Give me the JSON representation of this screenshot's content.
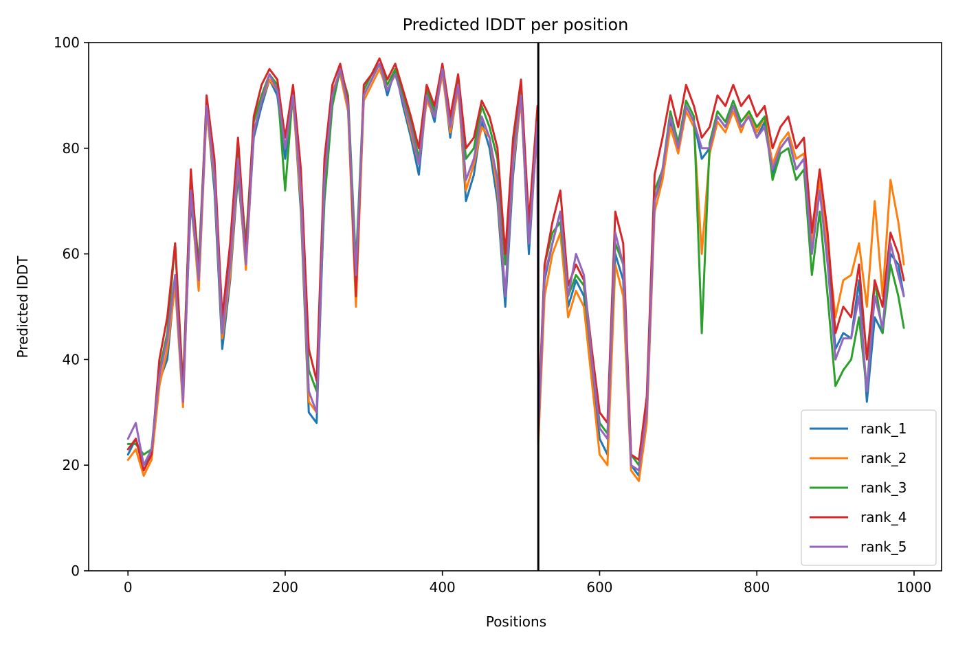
{
  "chart_data": {
    "type": "line",
    "title": "Predicted lDDT per position",
    "xlabel": "Positions",
    "ylabel": "Predicted lDDT",
    "xlim": [
      -50,
      1035
    ],
    "ylim": [
      0,
      100
    ],
    "xticks": [
      0,
      200,
      400,
      600,
      800,
      1000
    ],
    "yticks": [
      0,
      20,
      40,
      60,
      80,
      100
    ],
    "grid": false,
    "legend_position": "lower-right",
    "vline_x": 522,
    "x": [
      0,
      10,
      20,
      30,
      40,
      50,
      60,
      70,
      80,
      90,
      100,
      110,
      120,
      130,
      140,
      150,
      160,
      170,
      180,
      190,
      200,
      210,
      220,
      230,
      240,
      250,
      260,
      270,
      280,
      290,
      300,
      310,
      320,
      330,
      340,
      350,
      360,
      370,
      380,
      390,
      400,
      410,
      420,
      430,
      440,
      450,
      460,
      470,
      480,
      490,
      500,
      510,
      521,
      522,
      530,
      540,
      550,
      560,
      570,
      580,
      590,
      600,
      610,
      620,
      630,
      640,
      650,
      660,
      670,
      680,
      690,
      700,
      710,
      720,
      730,
      740,
      750,
      760,
      770,
      780,
      790,
      800,
      810,
      820,
      830,
      840,
      850,
      860,
      870,
      880,
      890,
      900,
      910,
      920,
      930,
      940,
      950,
      960,
      970,
      980,
      987
    ],
    "series": [
      {
        "name": "rank_1",
        "color": "#1f77b4",
        "values": [
          22,
          25,
          20,
          22,
          36,
          40,
          55,
          33,
          70,
          55,
          88,
          72,
          42,
          55,
          75,
          58,
          82,
          88,
          93,
          90,
          78,
          90,
          68,
          30,
          28,
          72,
          90,
          95,
          88,
          55,
          90,
          93,
          96,
          90,
          95,
          88,
          82,
          75,
          90,
          85,
          95,
          82,
          92,
          70,
          75,
          85,
          80,
          70,
          50,
          75,
          90,
          60,
          85,
          25,
          55,
          62,
          68,
          50,
          55,
          52,
          38,
          25,
          22,
          60,
          55,
          20,
          18,
          30,
          70,
          75,
          85,
          80,
          88,
          85,
          78,
          80,
          86,
          84,
          88,
          84,
          86,
          82,
          85,
          75,
          80,
          82,
          76,
          78,
          60,
          72,
          60,
          42,
          45,
          44,
          55,
          32,
          48,
          45,
          60,
          58,
          52
        ]
      },
      {
        "name": "rank_2",
        "color": "#ff7f0e",
        "values": [
          21,
          23,
          18,
          21,
          35,
          42,
          54,
          31,
          72,
          53,
          87,
          74,
          44,
          56,
          77,
          57,
          83,
          89,
          93,
          91,
          80,
          89,
          70,
          32,
          30,
          74,
          91,
          94,
          87,
          50,
          89,
          92,
          95,
          91,
          94,
          89,
          83,
          77,
          89,
          86,
          94,
          83,
          91,
          72,
          77,
          84,
          82,
          72,
          52,
          77,
          89,
          62,
          84,
          24,
          52,
          60,
          64,
          48,
          53,
          50,
          36,
          22,
          20,
          58,
          52,
          19,
          17,
          28,
          68,
          74,
          84,
          79,
          87,
          84,
          60,
          79,
          85,
          83,
          87,
          83,
          87,
          83,
          86,
          77,
          81,
          83,
          78,
          79,
          62,
          74,
          62,
          48,
          55,
          56,
          62,
          50,
          70,
          52,
          74,
          66,
          58
        ]
      },
      {
        "name": "rank_3",
        "color": "#2ca02c",
        "values": [
          24,
          24,
          22,
          23,
          38,
          45,
          62,
          35,
          75,
          58,
          89,
          76,
          46,
          60,
          79,
          62,
          85,
          90,
          94,
          92,
          72,
          91,
          74,
          38,
          34,
          70,
          88,
          95,
          90,
          58,
          91,
          94,
          96,
          92,
          95,
          90,
          85,
          78,
          91,
          87,
          95,
          85,
          93,
          78,
          80,
          88,
          84,
          78,
          58,
          80,
          92,
          65,
          86,
          27,
          58,
          64,
          66,
          52,
          56,
          54,
          40,
          28,
          26,
          62,
          58,
          22,
          20,
          32,
          72,
          76,
          87,
          81,
          89,
          86,
          45,
          81,
          87,
          85,
          89,
          85,
          87,
          84,
          86,
          74,
          79,
          80,
          74,
          76,
          56,
          68,
          52,
          35,
          38,
          40,
          48,
          34,
          55,
          45,
          58,
          52,
          46
        ]
      },
      {
        "name": "rank_4",
        "color": "#d62728",
        "values": [
          23,
          25,
          19,
          22,
          40,
          48,
          62,
          34,
          76,
          56,
          90,
          78,
          48,
          62,
          82,
          60,
          86,
          92,
          95,
          93,
          82,
          92,
          76,
          42,
          36,
          78,
          92,
          96,
          89,
          52,
          92,
          94,
          97,
          93,
          96,
          91,
          86,
          80,
          92,
          88,
          96,
          86,
          94,
          80,
          82,
          89,
          86,
          80,
          60,
          82,
          93,
          66,
          88,
          28,
          58,
          66,
          72,
          54,
          58,
          55,
          42,
          30,
          28,
          68,
          62,
          22,
          21,
          33,
          75,
          82,
          90,
          84,
          92,
          88,
          82,
          84,
          90,
          88,
          92,
          88,
          90,
          86,
          88,
          80,
          84,
          86,
          80,
          82,
          64,
          76,
          64,
          45,
          50,
          48,
          58,
          40,
          55,
          50,
          64,
          60,
          55
        ]
      },
      {
        "name": "rank_5",
        "color": "#9467bd",
        "values": [
          25,
          28,
          20,
          23,
          37,
          44,
          56,
          32,
          72,
          55,
          88,
          75,
          45,
          58,
          78,
          58,
          83,
          89,
          94,
          91,
          80,
          90,
          72,
          34,
          30,
          74,
          90,
          95,
          88,
          56,
          90,
          93,
          96,
          91,
          94,
          89,
          84,
          77,
          90,
          86,
          95,
          84,
          92,
          74,
          78,
          86,
          82,
          74,
          52,
          78,
          90,
          62,
          85,
          26,
          56,
          62,
          68,
          52,
          60,
          56,
          40,
          27,
          25,
          64,
          58,
          20,
          19,
          30,
          70,
          76,
          86,
          80,
          88,
          85,
          80,
          80,
          86,
          84,
          88,
          84,
          86,
          82,
          84,
          76,
          80,
          82,
          76,
          78,
          60,
          72,
          58,
          40,
          44,
          44,
          52,
          34,
          52,
          46,
          62,
          56,
          52
        ]
      }
    ]
  }
}
